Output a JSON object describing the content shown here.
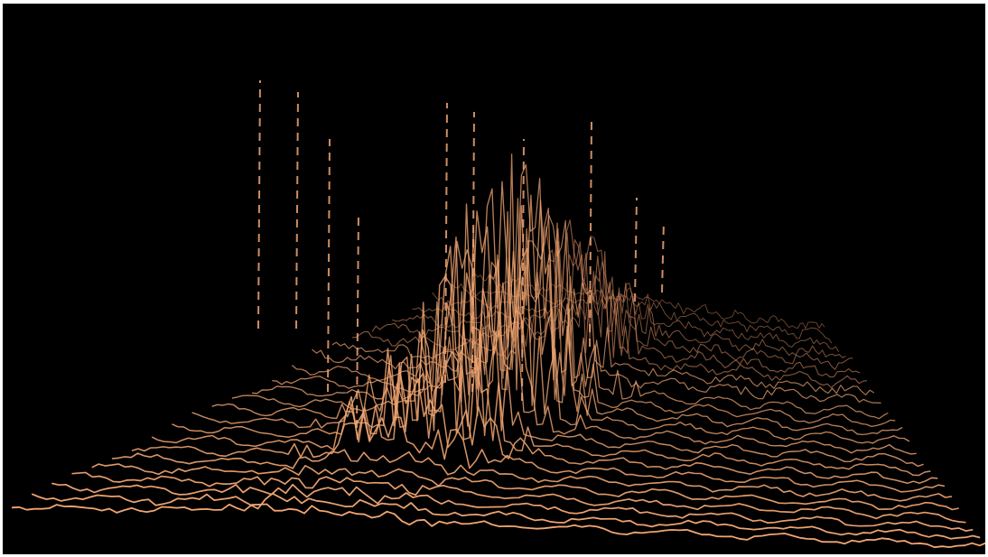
{
  "chart_data": {
    "type": "line",
    "title": "",
    "xlabel": "",
    "ylabel": "",
    "grid": false,
    "legend": "none",
    "colors": {
      "background": "#000000",
      "trace": "#f2a672",
      "trace_dim": "#c9825a"
    },
    "num_traces": 24,
    "samples_per_trace": 130
  }
}
